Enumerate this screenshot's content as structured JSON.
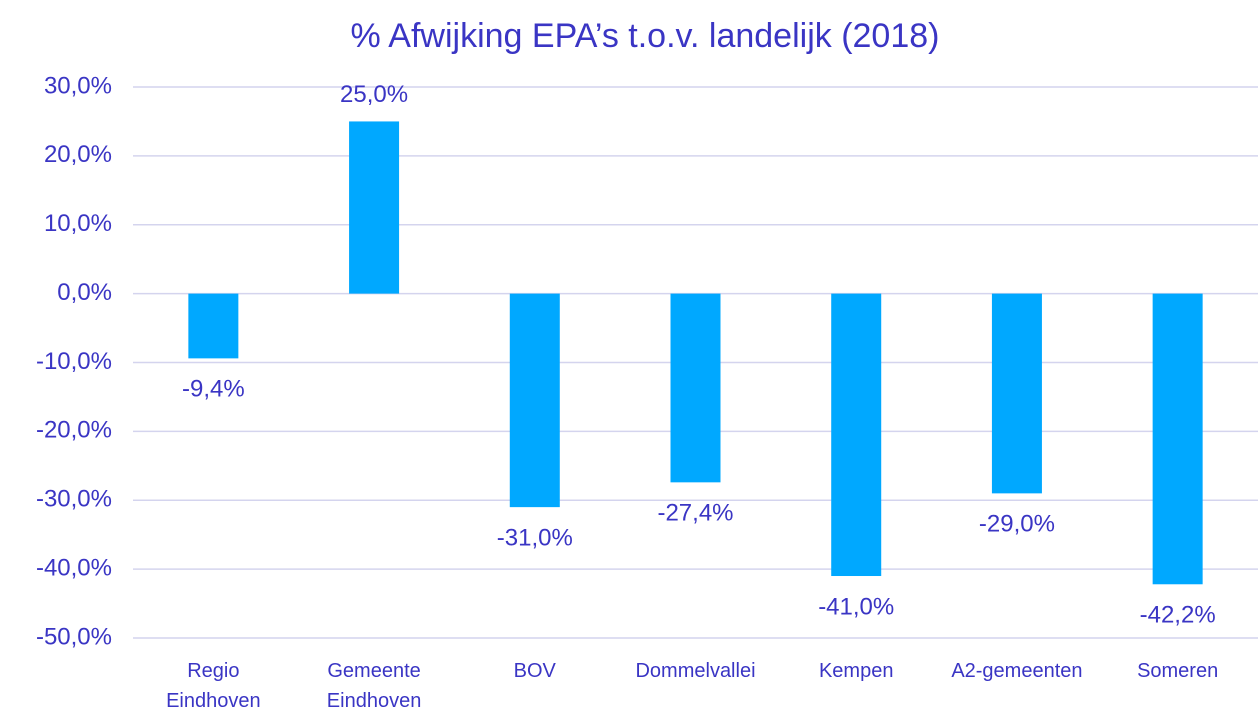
{
  "chart_data": {
    "type": "bar",
    "title": "% Afwijking EPA’s t.o.v. landelijk (2018)",
    "categories": [
      "Regio Eindhoven",
      "Gemeente Eindhoven",
      "BOV",
      "Dommelvallei",
      "Kempen",
      "A2-gemeenten",
      "Someren"
    ],
    "values": [
      -9.4,
      25.0,
      -31.0,
      -27.4,
      -41.0,
      -29.0,
      -42.2
    ],
    "value_labels": [
      "-9,4%",
      "25,0%",
      "-31,0%",
      "-27,4%",
      "-41,0%",
      "-29,0%",
      "-42,2%"
    ],
    "color": "#00a8ff",
    "ylim": [
      -50,
      30
    ],
    "yticks": [
      {
        "value": -50,
        "label": "-50,0%"
      },
      {
        "value": -40,
        "label": "-40,0%"
      },
      {
        "value": -30,
        "label": "-30,0%"
      },
      {
        "value": -20,
        "label": "-20,0%"
      },
      {
        "value": -10,
        "label": "-10,0%"
      },
      {
        "value": 0,
        "label": "0,0%"
      },
      {
        "value": 10,
        "label": "10,0%"
      },
      {
        "value": 20,
        "label": "20,0%"
      },
      {
        "value": 30,
        "label": "30,0%"
      }
    ],
    "grid": true
  }
}
